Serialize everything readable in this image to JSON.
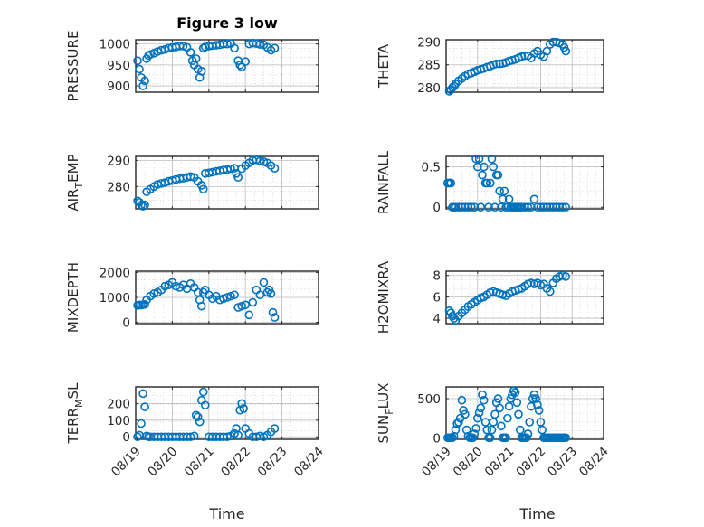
{
  "figure": {
    "title": "Figure 3 low"
  },
  "chart_data": [
    {
      "type": "scatter",
      "ylabel": "PRESSURE",
      "ylabel_sub": "",
      "ylim": [
        885,
        1010
      ],
      "yticks": [
        900,
        950,
        1000
      ],
      "x_ticks": [
        "08/19",
        "08/20",
        "08/21",
        "08/22",
        "08/23",
        "08/24"
      ],
      "show_xticks": false,
      "xlim": [
        0,
        5
      ],
      "grid": true,
      "series": [
        {
          "x": [
            0.05,
            0.1,
            0.15,
            0.2,
            0.25,
            0.3,
            0.35,
            0.4,
            0.5,
            0.6,
            0.7,
            0.8,
            0.9,
            1.0,
            1.1,
            1.2,
            1.3,
            1.4,
            1.5,
            1.55,
            1.6,
            1.65,
            1.7,
            1.75,
            1.8,
            1.85,
            1.9,
            2.0,
            2.1,
            2.2,
            2.3,
            2.4,
            2.5,
            2.6,
            2.7,
            2.8,
            2.85,
            2.9,
            3.0,
            3.1,
            3.2,
            3.3,
            3.4,
            3.5,
            3.6,
            3.7,
            3.8
          ],
          "y": [
            960,
            940,
            920,
            900,
            912,
            965,
            972,
            975,
            978,
            982,
            985,
            987,
            990,
            992,
            993,
            995,
            995,
            992,
            980,
            960,
            950,
            965,
            940,
            920,
            935,
            990,
            993,
            995,
            996,
            997,
            998,
            1000,
            1000,
            1001,
            990,
            960,
            950,
            945,
            958,
            1000,
            1002,
            1001,
            999,
            998,
            992,
            985,
            990
          ]
        }
      ]
    },
    {
      "type": "scatter",
      "ylabel": "THETA",
      "ylabel_sub": "",
      "ylim": [
        279,
        290.5
      ],
      "yticks": [
        280,
        285,
        290
      ],
      "x_ticks": [
        "08/19",
        "08/20",
        "08/21",
        "08/22",
        "08/23",
        "08/24"
      ],
      "show_xticks": false,
      "xlim": [
        0,
        5
      ],
      "grid": true,
      "series": [
        {
          "x": [
            0.1,
            0.15,
            0.2,
            0.25,
            0.3,
            0.4,
            0.5,
            0.6,
            0.7,
            0.8,
            0.9,
            1.0,
            1.1,
            1.2,
            1.3,
            1.4,
            1.5,
            1.6,
            1.7,
            1.8,
            1.9,
            2.0,
            2.1,
            2.2,
            2.3,
            2.4,
            2.5,
            2.6,
            2.7,
            2.8,
            2.9,
            3.0,
            3.1,
            3.2,
            3.3,
            3.4,
            3.5,
            3.6,
            3.7,
            3.75,
            3.8
          ],
          "y": [
            279.2,
            279.5,
            280,
            280.3,
            280.8,
            281.5,
            282,
            282.5,
            283,
            283.2,
            283.5,
            283.8,
            284,
            284.2,
            284.5,
            284.7,
            285,
            285.2,
            285.2,
            285.3,
            285.5,
            285.8,
            286,
            286.2,
            286.5,
            286.8,
            287,
            287,
            286.5,
            287.5,
            288,
            287.2,
            286.8,
            288,
            289.5,
            290,
            290,
            289.8,
            289.5,
            288.8,
            288
          ]
        }
      ]
    },
    {
      "type": "scatter",
      "ylabel": "AIR",
      "ylabel_sub": "T",
      "ylabel_after": "EMP",
      "ylim": [
        271.5,
        291.5
      ],
      "yticks": [
        280,
        290
      ],
      "x_ticks": [
        "08/19",
        "08/20",
        "08/21",
        "08/22",
        "08/23",
        "08/24"
      ],
      "show_xticks": false,
      "xlim": [
        0,
        5
      ],
      "grid": true,
      "series": [
        {
          "x": [
            0.05,
            0.1,
            0.15,
            0.2,
            0.25,
            0.3,
            0.4,
            0.5,
            0.6,
            0.7,
            0.8,
            0.9,
            1.0,
            1.1,
            1.2,
            1.3,
            1.4,
            1.5,
            1.6,
            1.7,
            1.8,
            1.85,
            1.9,
            2.0,
            2.1,
            2.2,
            2.3,
            2.4,
            2.5,
            2.6,
            2.7,
            2.75,
            2.8,
            2.9,
            3.0,
            3.1,
            3.2,
            3.3,
            3.4,
            3.5,
            3.6,
            3.7,
            3.8
          ],
          "y": [
            274.5,
            274,
            273,
            272.5,
            273,
            278,
            279,
            280,
            280.8,
            281.2,
            281.5,
            282,
            282.3,
            282.7,
            283,
            283.2,
            283.5,
            283.8,
            283.5,
            282,
            280.5,
            279,
            285,
            285.2,
            285.5,
            285.8,
            286,
            286.3,
            286.5,
            286.8,
            287,
            285,
            283.5,
            286.8,
            288,
            289,
            290,
            290.2,
            289.8,
            289.5,
            289,
            288,
            287
          ]
        }
      ]
    },
    {
      "type": "scatter",
      "ylabel": "RAINFALL",
      "ylabel_sub": "",
      "ylim": [
        -0.02,
        0.63
      ],
      "yticks": [
        0,
        0.5
      ],
      "ytick_labels": [
        "0",
        "0.5"
      ],
      "x_ticks": [
        "08/19",
        "08/20",
        "08/21",
        "08/22",
        "08/23",
        "08/24"
      ],
      "show_xticks": false,
      "xlim": [
        0,
        5
      ],
      "grid": true,
      "series": [
        {
          "x": [
            0.05,
            0.1,
            0.15,
            0.2,
            0.25,
            0.3,
            0.4,
            0.5,
            0.6,
            0.7,
            0.8,
            0.9,
            0.95,
            1.0,
            1.05,
            1.1,
            1.15,
            1.2,
            1.25,
            1.3,
            1.35,
            1.4,
            1.45,
            1.5,
            1.55,
            1.6,
            1.65,
            1.7,
            1.75,
            1.8,
            1.85,
            1.9,
            1.95,
            2.0,
            2.05,
            2.1,
            2.15,
            2.2,
            2.25,
            2.3,
            2.35,
            2.4,
            2.5,
            2.6,
            2.7,
            2.8,
            2.9,
            3.0,
            3.1,
            3.2,
            3.3,
            3.4,
            3.5,
            3.6,
            3.7,
            3.8
          ],
          "y": [
            0.3,
            0.3,
            0.3,
            0,
            0,
            0,
            0,
            0,
            0,
            0,
            0,
            0,
            0.6,
            0.5,
            0.6,
            0,
            0.4,
            0.5,
            0.3,
            0.3,
            0,
            0.3,
            0.6,
            0.5,
            0,
            0.4,
            0.4,
            0.2,
            0,
            0.1,
            0.2,
            0,
            0,
            0.1,
            0,
            0,
            0,
            0,
            0,
            0,
            0,
            0,
            0,
            0,
            0,
            0.1,
            0,
            0,
            0,
            0,
            0,
            0,
            0,
            0,
            0,
            0
          ]
        }
      ]
    },
    {
      "type": "scatter",
      "ylabel": "MIXDEPTH",
      "ylabel_sub": "",
      "ylim": [
        -50,
        2050
      ],
      "yticks": [
        0,
        1000,
        2000
      ],
      "x_ticks": [
        "08/19",
        "08/20",
        "08/21",
        "08/22",
        "08/23",
        "08/24"
      ],
      "show_xticks": false,
      "xlim": [
        0,
        5
      ],
      "grid": true,
      "series": [
        {
          "x": [
            0.05,
            0.1,
            0.15,
            0.2,
            0.25,
            0.3,
            0.4,
            0.5,
            0.6,
            0.7,
            0.8,
            0.9,
            1.0,
            1.1,
            1.2,
            1.3,
            1.4,
            1.5,
            1.6,
            1.7,
            1.75,
            1.8,
            1.85,
            1.9,
            2.0,
            2.1,
            2.2,
            2.3,
            2.4,
            2.5,
            2.6,
            2.7,
            2.8,
            2.9,
            3.0,
            3.1,
            3.2,
            3.3,
            3.4,
            3.5,
            3.6,
            3.65,
            3.7,
            3.75,
            3.8
          ],
          "y": [
            680,
            700,
            690,
            710,
            720,
            900,
            1050,
            1150,
            1200,
            1300,
            1450,
            1500,
            1600,
            1450,
            1400,
            1500,
            1350,
            1550,
            1400,
            1200,
            900,
            650,
            1200,
            1300,
            1100,
            950,
            1050,
            900,
            950,
            1000,
            1050,
            1100,
            600,
            650,
            700,
            300,
            800,
            1300,
            1100,
            1600,
            1200,
            1300,
            1150,
            400,
            200
          ]
        }
      ]
    },
    {
      "type": "scatter",
      "ylabel": "H2OMIXRA",
      "ylabel_sub": "",
      "ylim": [
        3.5,
        8.4
      ],
      "yticks": [
        4,
        6,
        8
      ],
      "x_ticks": [
        "08/19",
        "08/20",
        "08/21",
        "08/22",
        "08/23",
        "08/24"
      ],
      "show_xticks": false,
      "xlim": [
        0,
        5
      ],
      "grid": true,
      "series": [
        {
          "x": [
            0.1,
            0.15,
            0.2,
            0.25,
            0.3,
            0.4,
            0.5,
            0.6,
            0.7,
            0.8,
            0.9,
            1.0,
            1.1,
            1.2,
            1.3,
            1.4,
            1.5,
            1.6,
            1.7,
            1.8,
            1.9,
            2.0,
            2.1,
            2.2,
            2.3,
            2.4,
            2.5,
            2.6,
            2.7,
            2.8,
            2.9,
            3.0,
            3.1,
            3.2,
            3.3,
            3.4,
            3.5,
            3.6,
            3.7,
            3.8
          ],
          "y": [
            4.7,
            4.5,
            4.2,
            4,
            3.8,
            4.2,
            4.5,
            4.8,
            5.1,
            5.3,
            5.5,
            5.7,
            5.9,
            6,
            6.2,
            6.4,
            6.5,
            6.4,
            6.3,
            6.2,
            6.1,
            6.3,
            6.5,
            6.6,
            6.7,
            6.8,
            7,
            7.2,
            7.3,
            7.2,
            7.3,
            7.1,
            7.2,
            6.8,
            6.5,
            7.3,
            7.7,
            7.9,
            8,
            7.9
          ]
        }
      ]
    },
    {
      "type": "scatter",
      "ylabel": "TERR",
      "ylabel_sub": "M",
      "ylabel_after": "SL",
      "ylim": [
        -15,
        300
      ],
      "yticks": [
        0,
        100,
        200
      ],
      "x_ticks": [
        "08/19",
        "08/20",
        "08/21",
        "08/22",
        "08/23",
        "08/24"
      ],
      "show_xticks": true,
      "xlim": [
        0,
        5
      ],
      "grid": true,
      "series": [
        {
          "x": [
            0.05,
            0.1,
            0.15,
            0.2,
            0.25,
            0.3,
            0.35,
            0.4,
            0.5,
            0.6,
            0.7,
            0.8,
            0.9,
            1.0,
            1.1,
            1.2,
            1.3,
            1.4,
            1.5,
            1.6,
            1.65,
            1.7,
            1.75,
            1.8,
            1.85,
            1.9,
            2.0,
            2.1,
            2.2,
            2.3,
            2.4,
            2.5,
            2.6,
            2.7,
            2.75,
            2.8,
            2.85,
            2.9,
            2.95,
            3.0,
            3.1,
            3.2,
            3.3,
            3.4,
            3.5,
            3.6,
            3.7,
            3.8
          ],
          "y": [
            0,
            10,
            80,
            260,
            180,
            5,
            0,
            0,
            0,
            0,
            0,
            0,
            0,
            0,
            0,
            0,
            0,
            0,
            0,
            5,
            130,
            120,
            90,
            220,
            270,
            190,
            0,
            0,
            0,
            0,
            0,
            0,
            5,
            20,
            50,
            10,
            160,
            200,
            170,
            50,
            20,
            0,
            0,
            5,
            0,
            10,
            30,
            50
          ]
        }
      ]
    },
    {
      "type": "scatter",
      "ylabel": "SUN",
      "ylabel_sub": "F",
      "ylabel_after": "LUX",
      "ylim": [
        -20,
        650
      ],
      "yticks": [
        0,
        500
      ],
      "x_ticks": [
        "08/19",
        "08/20",
        "08/21",
        "08/22",
        "08/23",
        "08/24"
      ],
      "show_xticks": true,
      "xlim": [
        0,
        5
      ],
      "grid": true,
      "series": [
        {
          "x": [
            0.05,
            0.1,
            0.15,
            0.2,
            0.25,
            0.3,
            0.35,
            0.4,
            0.45,
            0.5,
            0.55,
            0.6,
            0.65,
            0.7,
            0.75,
            0.8,
            0.85,
            0.9,
            0.95,
            1.0,
            1.05,
            1.1,
            1.15,
            1.2,
            1.25,
            1.3,
            1.35,
            1.4,
            1.45,
            1.5,
            1.55,
            1.6,
            1.65,
            1.7,
            1.75,
            1.8,
            1.85,
            1.9,
            1.95,
            2.0,
            2.05,
            2.1,
            2.15,
            2.2,
            2.25,
            2.3,
            2.35,
            2.4,
            2.45,
            2.5,
            2.55,
            2.6,
            2.65,
            2.7,
            2.75,
            2.8,
            2.85,
            2.9,
            2.95,
            3.0,
            3.05,
            3.1,
            3.15,
            3.2,
            3.25,
            3.3,
            3.35,
            3.4,
            3.45,
            3.5,
            3.55,
            3.6,
            3.65,
            3.7,
            3.75,
            3.8
          ],
          "y": [
            0,
            0,
            0,
            0,
            20,
            100,
            180,
            200,
            250,
            480,
            350,
            300,
            100,
            20,
            0,
            0,
            0,
            50,
            120,
            250,
            320,
            380,
            550,
            480,
            200,
            100,
            0,
            0,
            100,
            200,
            300,
            450,
            500,
            380,
            150,
            0,
            0,
            0,
            250,
            400,
            500,
            550,
            600,
            580,
            450,
            300,
            100,
            0,
            0,
            0,
            0,
            50,
            200,
            400,
            500,
            550,
            500,
            420,
            350,
            200,
            100,
            0,
            0,
            0,
            0,
            0,
            0,
            0,
            0,
            0,
            0,
            0,
            0,
            0,
            0,
            0
          ]
        }
      ]
    }
  ],
  "axes": {
    "xlabel": "Time"
  }
}
